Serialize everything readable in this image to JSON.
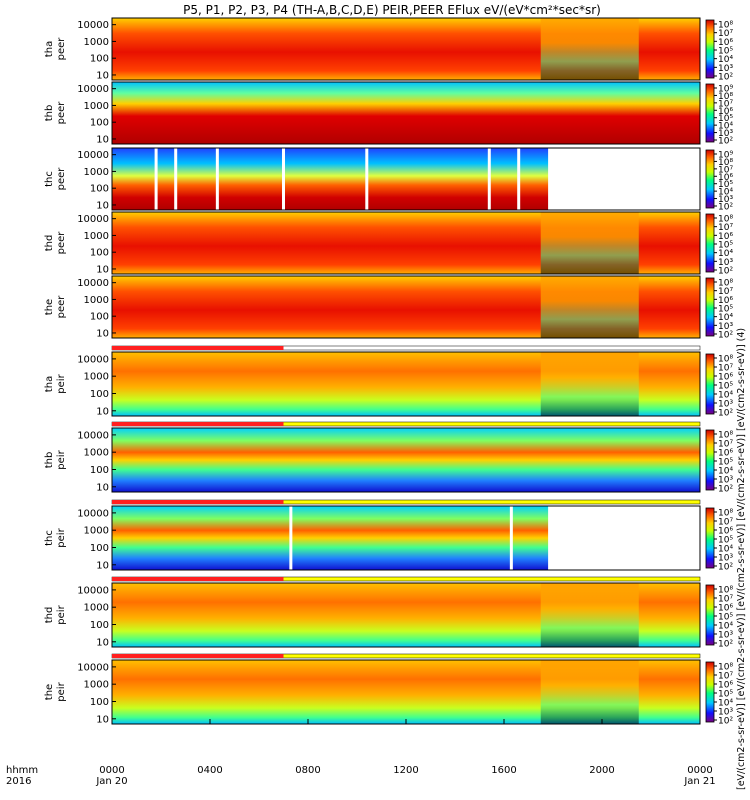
{
  "figure": {
    "title": "P5, P1, P2, P3, P4 (TH-A,B,C,D,E) PEIR,PEER EFlux eV/(eV*cm²*sec*sr)",
    "time_header_line1": "hhmm",
    "time_header_line2": "2016",
    "colorbar_label": "[eV/(cm2-s-sr-eV)] [eV/(cm2-s-sr-eV)] [eV/(cm2-s-sr-eV)] [eV/(cm2-s-sr-eV)] [eV/(cm2-s-sr-eV)] (4)"
  },
  "chart_data": {
    "type": "heatmap",
    "title": "P5, P1, P2, P3, P4 (TH-A,B,C,D,E) PEIR,PEER EFlux eV/(eV*cm²*sec*sr)",
    "x_axis": {
      "ticks": [
        "0000",
        "0400",
        "0800",
        "1200",
        "1600",
        "2000",
        "0000"
      ],
      "tick_hours": [
        0,
        4,
        8,
        12,
        16,
        20,
        24
      ],
      "date_labels": [
        {
          "hour": 0,
          "text": "Jan 20"
        },
        {
          "hour": 24,
          "text": "Jan 21"
        }
      ],
      "range_hours": [
        0,
        24
      ]
    },
    "y_axis": {
      "scale": "log",
      "ticks": [
        "10",
        "100",
        "1000",
        "10000"
      ],
      "tick_values": [
        10,
        100,
        1000,
        10000
      ],
      "range": [
        5,
        25000
      ]
    },
    "color_scale": {
      "scale": "log",
      "colors": [
        "#7a0080",
        "#1010ff",
        "#00c8ff",
        "#00ff80",
        "#c8ff00",
        "#ffd000",
        "#ff6000",
        "#d00000"
      ]
    },
    "panels": [
      {
        "label_probe": "tha",
        "label_species": "peer",
        "cb_ticks": [
          "10⁸",
          "10⁷",
          "10⁶",
          "10⁵",
          "10⁴",
          "10³",
          "10²"
        ],
        "data_end_hour": 24,
        "gaps": [],
        "bar_colors": null
      },
      {
        "label_probe": "thb",
        "label_species": "peer",
        "cb_ticks": [
          "10⁹",
          "10⁸",
          "10⁷",
          "10⁶",
          "10⁵",
          "10⁴",
          "10³",
          "10²"
        ],
        "data_end_hour": 24,
        "gaps": [],
        "bar_colors": null
      },
      {
        "label_probe": "thc",
        "label_species": "peer",
        "cb_ticks": [
          "10⁹",
          "10⁸",
          "10⁷",
          "10⁶",
          "10⁵",
          "10⁴",
          "10³",
          "10²"
        ],
        "data_end_hour": 17.8,
        "gaps": [
          1.8,
          2.6,
          4.3,
          7.0,
          10.4,
          15.4,
          16.6
        ],
        "bar_colors": null
      },
      {
        "label_probe": "thd",
        "label_species": "peer",
        "cb_ticks": [
          "10⁸",
          "10⁷",
          "10⁶",
          "10⁵",
          "10⁴",
          "10³",
          "10²"
        ],
        "data_end_hour": 24,
        "gaps": [],
        "bar_colors": null
      },
      {
        "label_probe": "the",
        "label_species": "peer",
        "cb_ticks": [
          "10⁸",
          "10⁷",
          "10⁶",
          "10⁵",
          "10⁴",
          "10³",
          "10²"
        ],
        "data_end_hour": 24,
        "gaps": [],
        "bar_colors": null
      },
      {
        "label_probe": "tha",
        "label_species": "peir",
        "cb_ticks": [
          "10⁸",
          "10⁷",
          "10⁶",
          "10⁵",
          "10⁴",
          "10³",
          "10²"
        ],
        "data_end_hour": 24,
        "gaps": [],
        "bar_colors": [
          "#ff2020",
          "#ffffff"
        ]
      },
      {
        "label_probe": "thb",
        "label_species": "peir",
        "cb_ticks": [
          "10⁸",
          "10⁷",
          "10⁶",
          "10⁵",
          "10⁴",
          "10³",
          "10²"
        ],
        "data_end_hour": 24,
        "gaps": [],
        "bar_colors": [
          "#ff2020",
          "#ffff00"
        ]
      },
      {
        "label_probe": "thc",
        "label_species": "peir",
        "cb_ticks": [
          "10⁸",
          "10⁷",
          "10⁶",
          "10⁵",
          "10⁴",
          "10³",
          "10²"
        ],
        "data_end_hour": 17.8,
        "gaps": [
          7.3,
          16.3
        ],
        "bar_colors": [
          "#ff2020",
          "#ffff00"
        ]
      },
      {
        "label_probe": "thd",
        "label_species": "peir",
        "cb_ticks": [
          "10⁸",
          "10⁷",
          "10⁶",
          "10⁵",
          "10⁴",
          "10³",
          "10²"
        ],
        "data_end_hour": 24,
        "gaps": [],
        "bar_colors": [
          "#ff2020",
          "#ffff00"
        ]
      },
      {
        "label_probe": "the",
        "label_species": "peir",
        "cb_ticks": [
          "10⁸",
          "10⁷",
          "10⁶",
          "10⁵",
          "10⁴",
          "10³",
          "10²"
        ],
        "data_end_hour": 24,
        "gaps": [],
        "bar_colors": [
          "#ff2020",
          "#ffff00"
        ]
      }
    ],
    "grid": false
  }
}
